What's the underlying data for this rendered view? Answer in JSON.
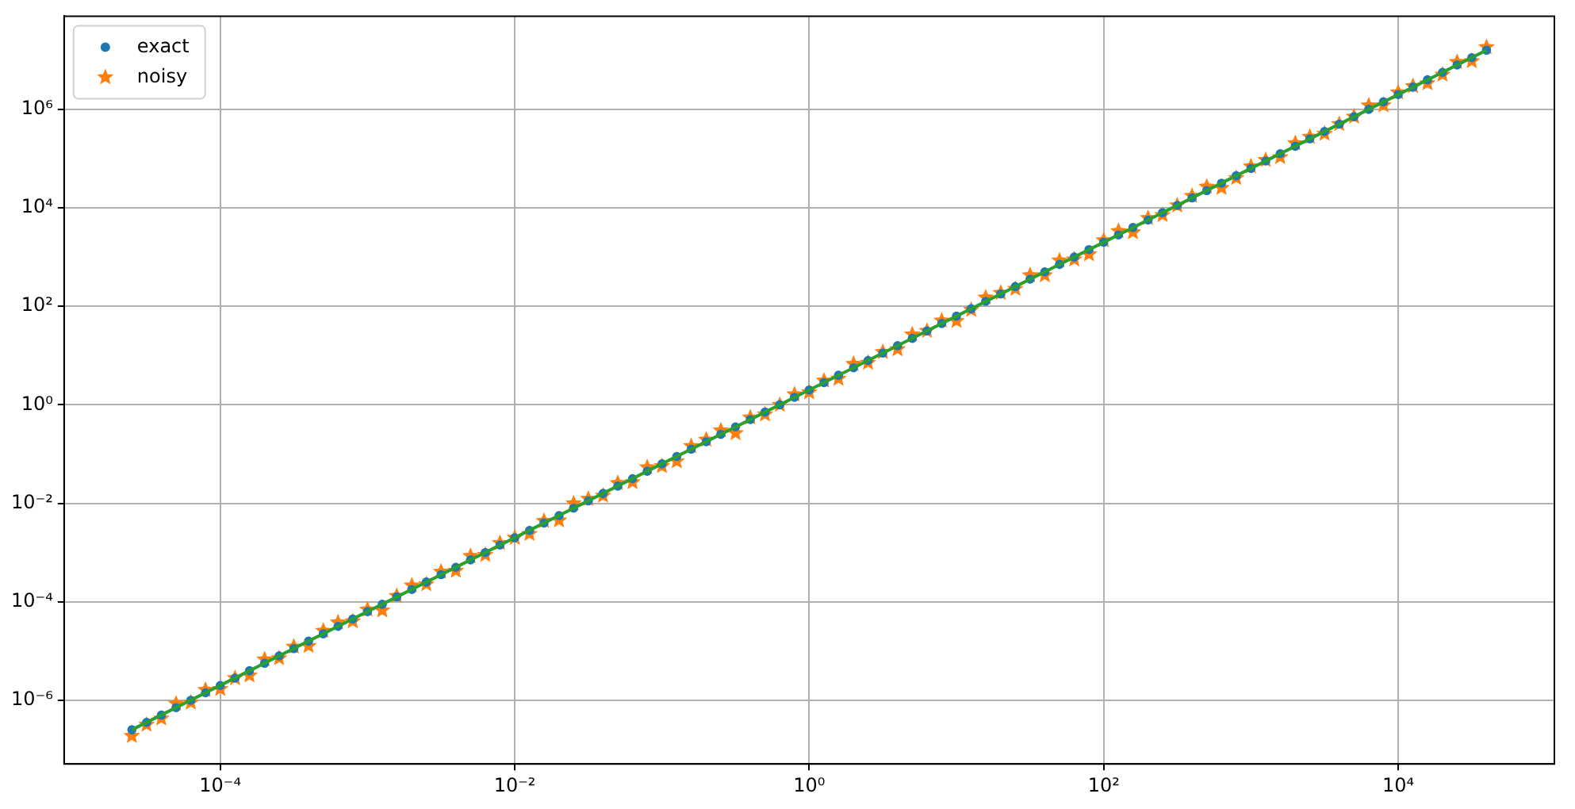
{
  "chart_data": {
    "type": "scatter",
    "log": "xy",
    "grid": true,
    "legend": "top left",
    "xlim": [
      8.7e-06,
      115000.0
    ],
    "ylim": [
      5.1e-08,
      78000000.0
    ],
    "xticks": [
      {
        "value": 0.0001,
        "label": "10⁻⁴"
      },
      {
        "value": 0.01,
        "label": "10⁻²"
      },
      {
        "value": 1,
        "label": "10⁰"
      },
      {
        "value": 100,
        "label": "10²"
      },
      {
        "value": 10000,
        "label": "10⁴"
      }
    ],
    "yticks": [
      {
        "value": 1e-06,
        "label": "10⁻⁶"
      },
      {
        "value": 0.0001,
        "label": "10⁻⁴"
      },
      {
        "value": 0.01,
        "label": "10⁻²"
      },
      {
        "value": 1,
        "label": "10⁰"
      },
      {
        "value": 100,
        "label": "10²"
      },
      {
        "value": 10000,
        "label": "10⁴"
      },
      {
        "value": 1000000,
        "label": "10⁶"
      }
    ],
    "x": [
      2.51e-05,
      3.16e-05,
      3.98e-05,
      5.01e-05,
      6.31e-05,
      7.94e-05,
      0.0001,
      0.000126,
      0.000158,
      0.0002,
      0.000251,
      0.000316,
      0.000398,
      0.000501,
      0.000631,
      0.000794,
      0.001,
      0.00126,
      0.00158,
      0.002,
      0.00251,
      0.00316,
      0.00398,
      0.00501,
      0.00631,
      0.00794,
      0.01,
      0.0126,
      0.0158,
      0.02,
      0.0251,
      0.0316,
      0.0398,
      0.0501,
      0.0631,
      0.0794,
      0.1,
      0.126,
      0.158,
      0.2,
      0.251,
      0.316,
      0.398,
      0.501,
      0.631,
      0.794,
      1,
      1.26,
      1.58,
      2,
      2.51,
      3.16,
      3.98,
      5.01,
      6.31,
      7.94,
      10,
      12.6,
      15.8,
      20,
      25.1,
      31.6,
      39.8,
      50.1,
      63.1,
      79.4,
      100,
      126,
      158,
      200,
      251,
      316,
      398,
      501,
      631,
      794,
      1000,
      1260,
      1580,
      2000,
      2510,
      3160,
      3980,
      5010,
      6310,
      7940,
      10000,
      12600,
      15800,
      20000,
      25100,
      31600,
      39800
    ],
    "series": [
      {
        "name": "exact",
        "marker": "circle",
        "color": "#1f77b4",
        "values": [
          2.52e-07,
          3.56e-07,
          5.02e-07,
          7.1e-07,
          1e-06,
          1.42e-06,
          2e-06,
          2.82e-06,
          3.99e-06,
          5.64e-06,
          7.96e-06,
          1.12e-05,
          1.59e-05,
          2.24e-05,
          3.17e-05,
          4.48e-05,
          6.32e-05,
          8.93e-05,
          0.000126,
          0.000178,
          0.000252,
          0.000356,
          0.000502,
          0.00071,
          0.001,
          0.00142,
          0.002,
          0.00282,
          0.00399,
          0.00564,
          0.00796,
          0.0112,
          0.0159,
          0.0224,
          0.0317,
          0.0448,
          0.0632,
          0.0893,
          0.126,
          0.178,
          0.252,
          0.356,
          0.502,
          0.71,
          1,
          1.42,
          2,
          2.82,
          3.99,
          5.64,
          7.96,
          11.2,
          15.9,
          22.4,
          31.7,
          44.8,
          63.2,
          89.3,
          126,
          178,
          252,
          356,
          502,
          710,
          1000,
          1420,
          2000,
          2820,
          3990,
          5640,
          7960,
          11200,
          15900,
          22400,
          31700,
          44800,
          63200,
          89300,
          126000,
          178000,
          252000,
          356000,
          502000,
          710000,
          1000000,
          1420000,
          2000000,
          2820000,
          3990000,
          5640000,
          7960000,
          11200000,
          15900000
        ]
      },
      {
        "name": "noisy",
        "marker": "star",
        "color": "#ff7f0e",
        "values": [
          1.89e-07,
          3.2e-07,
          4.27e-07,
          8.52e-07,
          9e-07,
          1.63e-06,
          1.7e-06,
          2.82e-06,
          3.19e-06,
          6.77e-06,
          7.16e-06,
          1.23e-05,
          1.27e-05,
          2.58e-05,
          3.8e-05,
          4.03e-05,
          6.95e-05,
          6.7e-05,
          0.000132,
          0.000214,
          0.000227,
          0.000409,
          0.000427,
          0.000852,
          0.0009,
          0.00156,
          0.002,
          0.0024,
          0.00439,
          0.00451,
          0.00995,
          0.0123,
          0.0143,
          0.0258,
          0.0269,
          0.0538,
          0.0569,
          0.0714,
          0.145,
          0.196,
          0.302,
          0.267,
          0.552,
          0.639,
          1,
          1.63,
          1.8,
          3.1,
          3.39,
          6.77,
          7.16,
          11.8,
          13.5,
          26.9,
          31.7,
          51.5,
          50.6,
          84.8,
          151,
          187,
          227,
          427,
          427,
          852,
          900,
          1140,
          2200,
          3380,
          3190,
          6200,
          7160,
          11200,
          17500,
          26900,
          25400,
          40300,
          69500,
          93800,
          107000,
          205000,
          277000,
          320000,
          502000,
          710000,
          1200000,
          1210000,
          2200000,
          2960000,
          3390000,
          5080000,
          9150000,
          9520000,
          18300000
        ]
      },
      {
        "type": "line",
        "marker": "none",
        "color": "#2ca02c",
        "x": [
          2.51e-05,
          39800
        ],
        "values": [
          2.52e-07,
          15900000
        ]
      }
    ]
  }
}
